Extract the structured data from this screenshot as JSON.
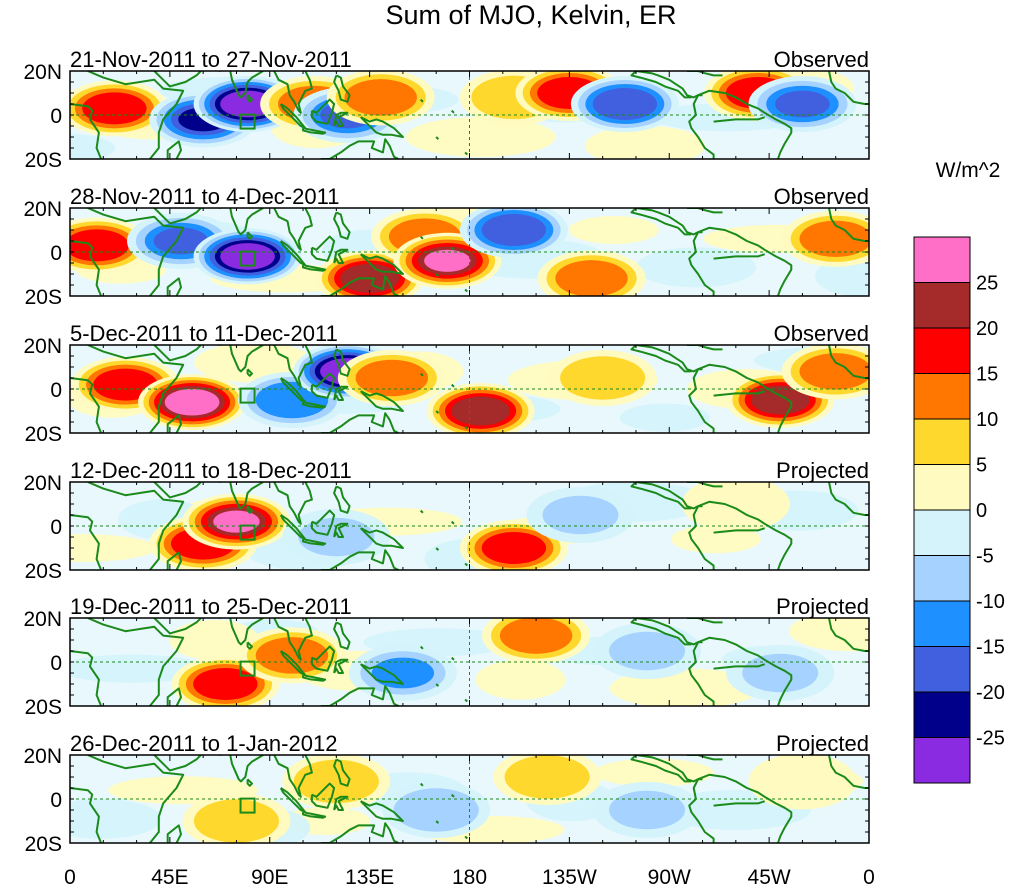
{
  "chart_data": {
    "type": "heatmap",
    "title": "Sum of MJO, Kelvin, ER",
    "units": "W/m^2",
    "lat_ticks": [
      "20N",
      "0",
      "20S"
    ],
    "lon_ticks": [
      "0",
      "45E",
      "90E",
      "135E",
      "180",
      "135W",
      "90W",
      "45W",
      "0"
    ],
    "lat_range": [
      -20,
      20
    ],
    "lon_range": [
      0,
      360
    ],
    "panels": [
      {
        "date_range": "21-Nov-2011 to 27-Nov-2011",
        "label": "Observed",
        "anomalies": [
          {
            "lon": 20,
            "lat": 3,
            "value": 18
          },
          {
            "lon": 60,
            "lat": -2,
            "value": -20
          },
          {
            "lon": 80,
            "lat": 5,
            "value": -28
          },
          {
            "lon": 110,
            "lat": 5,
            "value": 12
          },
          {
            "lon": 125,
            "lat": 0,
            "value": -15
          },
          {
            "lon": 140,
            "lat": 8,
            "value": 15
          },
          {
            "lon": 200,
            "lat": 8,
            "value": 10
          },
          {
            "lon": 225,
            "lat": 10,
            "value": 18
          },
          {
            "lon": 250,
            "lat": 5,
            "value": -18
          },
          {
            "lon": 310,
            "lat": 10,
            "value": 20
          },
          {
            "lon": 330,
            "lat": 5,
            "value": -15
          }
        ]
      },
      {
        "date_range": "28-Nov-2011 to 4-Dec-2011",
        "label": "Observed",
        "anomalies": [
          {
            "lon": 12,
            "lat": 3,
            "value": 20
          },
          {
            "lon": 50,
            "lat": 5,
            "value": -15
          },
          {
            "lon": 80,
            "lat": -2,
            "value": -26
          },
          {
            "lon": 135,
            "lat": -12,
            "value": 24
          },
          {
            "lon": 160,
            "lat": 7,
            "value": 15
          },
          {
            "lon": 170,
            "lat": -4,
            "value": 25
          },
          {
            "lon": 200,
            "lat": 10,
            "value": -18
          },
          {
            "lon": 235,
            "lat": -12,
            "value": 12
          },
          {
            "lon": 345,
            "lat": 6,
            "value": 12
          }
        ]
      },
      {
        "date_range": "5-Dec-2011 to 11-Dec-2011",
        "label": "Observed",
        "anomalies": [
          {
            "lon": 25,
            "lat": 2,
            "value": 18
          },
          {
            "lon": 55,
            "lat": -6,
            "value": 27
          },
          {
            "lon": 100,
            "lat": -5,
            "value": -12
          },
          {
            "lon": 125,
            "lat": 8,
            "value": -28
          },
          {
            "lon": 145,
            "lat": 5,
            "value": 12
          },
          {
            "lon": 185,
            "lat": -10,
            "value": 22
          },
          {
            "lon": 240,
            "lat": 5,
            "value": 10
          },
          {
            "lon": 320,
            "lat": -5,
            "value": 22
          },
          {
            "lon": 345,
            "lat": 8,
            "value": 15
          }
        ]
      },
      {
        "date_range": "12-Dec-2011 to 18-Dec-2011",
        "label": "Projected",
        "anomalies": [
          {
            "lon": 60,
            "lat": -8,
            "value": 20
          },
          {
            "lon": 75,
            "lat": 2,
            "value": 25
          },
          {
            "lon": 120,
            "lat": -5,
            "value": -5
          },
          {
            "lon": 200,
            "lat": -10,
            "value": 18
          },
          {
            "lon": 230,
            "lat": 5,
            "value": -5
          },
          {
            "lon": 300,
            "lat": 10,
            "value": 5
          }
        ]
      },
      {
        "date_range": "19-Dec-2011 to 25-Dec-2011",
        "label": "Projected",
        "anomalies": [
          {
            "lon": 70,
            "lat": -10,
            "value": 18
          },
          {
            "lon": 100,
            "lat": 3,
            "value": 12
          },
          {
            "lon": 150,
            "lat": -5,
            "value": -10
          },
          {
            "lon": 210,
            "lat": 12,
            "value": 15
          },
          {
            "lon": 260,
            "lat": 5,
            "value": -5
          },
          {
            "lon": 320,
            "lat": -5,
            "value": -5
          }
        ]
      },
      {
        "date_range": "26-Dec-2011 to 1-Jan-2012",
        "label": "Projected",
        "anomalies": [
          {
            "lon": 75,
            "lat": -10,
            "value": 10
          },
          {
            "lon": 120,
            "lat": 8,
            "value": 10
          },
          {
            "lon": 165,
            "lat": -5,
            "value": -6
          },
          {
            "lon": 215,
            "lat": 10,
            "value": 10
          },
          {
            "lon": 260,
            "lat": -5,
            "value": -5
          },
          {
            "lon": 330,
            "lat": 8,
            "value": 5
          }
        ]
      }
    ],
    "colorbar": {
      "tick_labels": [
        "25",
        "20",
        "15",
        "10",
        "5",
        "0",
        "-5",
        "-10",
        "-15",
        "-20",
        "-25"
      ],
      "colors": [
        "#ff6ec7",
        "#a52a2a",
        "#ff0000",
        "#ff7700",
        "#ffd82e",
        "#fffbc0",
        "#d4f3fb",
        "#a5d2ff",
        "#1e90ff",
        "#4060e0",
        "#00008b",
        "#8a2be2"
      ]
    },
    "box_marker": {
      "lon": 80,
      "lat": -3
    }
  }
}
